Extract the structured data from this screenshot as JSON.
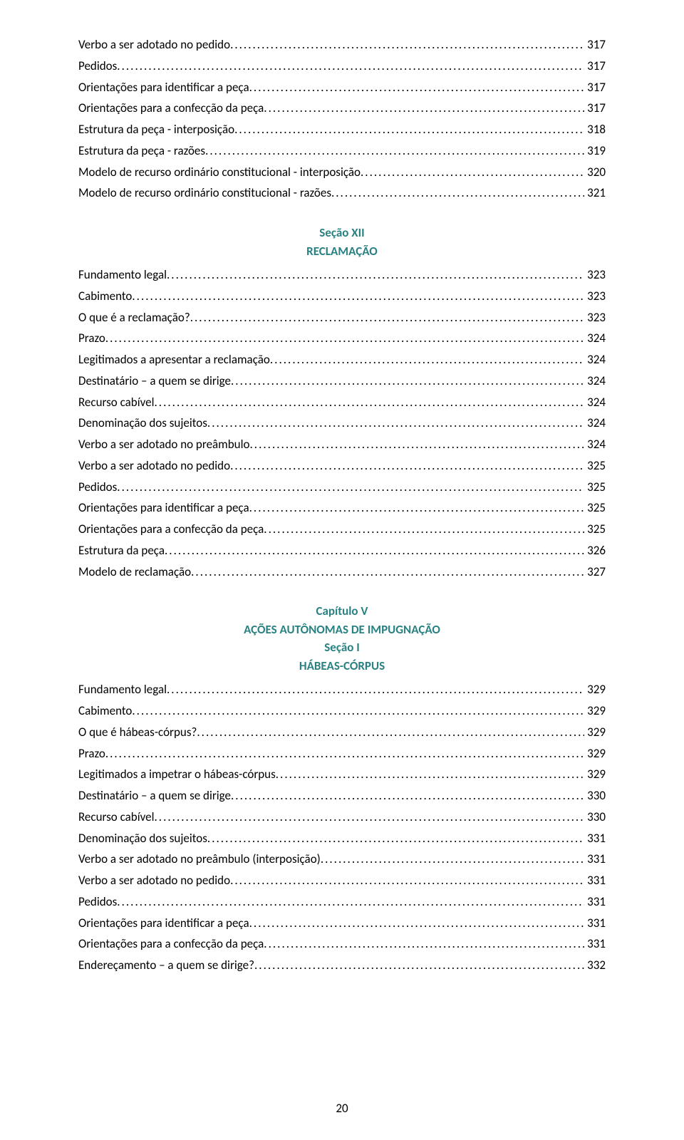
{
  "colors": {
    "text": "#000000",
    "accent": "#2a8182",
    "background": "#ffffff"
  },
  "typography": {
    "font_family": "Calibri",
    "body_fontsize_pt": 11,
    "heading_fontsize_pt": 11,
    "heading_weight": "bold",
    "line_height": 1.75
  },
  "page_number": "20",
  "blocks": [
    {
      "type": "toc",
      "items": [
        {
          "label": "Verbo a ser adotado no pedido",
          "page": "317"
        },
        {
          "label": "Pedidos",
          "page": "317"
        },
        {
          "label": "Orientações para identificar a peça",
          "page": "317"
        },
        {
          "label": "Orientações para a confecção da peça",
          "page": "317"
        },
        {
          "label": "Estrutura da peça  - interposição",
          "page": "318"
        },
        {
          "label": "Estrutura da peça  - razões",
          "page": "319"
        },
        {
          "label": "Modelo de recurso ordinário constitucional - interposição",
          "page": "320"
        },
        {
          "label": "Modelo de recurso ordinário constitucional - razões",
          "page": "321"
        }
      ]
    },
    {
      "type": "heading",
      "lines": [
        {
          "text": "Seção XII",
          "accent": true
        },
        {
          "text": "RECLAMAÇÃO",
          "accent": true
        }
      ]
    },
    {
      "type": "toc",
      "items": [
        {
          "label": "Fundamento legal",
          "page": "323"
        },
        {
          "label": "Cabimento",
          "page": "323"
        },
        {
          "label": "O que é a reclamação?",
          "page": "323"
        },
        {
          "label": "Prazo",
          "page": "324"
        },
        {
          "label": "Legitimados a apresentar a reclamação",
          "page": "324"
        },
        {
          "label": "Destinatário – a quem se dirige",
          "page": "324"
        },
        {
          "label": "Recurso cabível",
          "page": "324"
        },
        {
          "label": "Denominação dos sujeitos",
          "page": "324"
        },
        {
          "label": "Verbo a ser adotado no preâmbulo",
          "page": "324"
        },
        {
          "label": "Verbo a ser adotado no pedido",
          "page": "325"
        },
        {
          "label": "Pedidos",
          "page": "325"
        },
        {
          "label": "Orientações para identificar a peça",
          "page": "325"
        },
        {
          "label": "Orientações para a confecção da peça",
          "page": "325"
        },
        {
          "label": "Estrutura da peça ",
          "page": "326"
        },
        {
          "label": "Modelo de reclamação",
          "page": "327"
        }
      ]
    },
    {
      "type": "heading",
      "lines": [
        {
          "text": "Capítulo V",
          "accent": true
        },
        {
          "text": "AÇÕES AUTÔNOMAS DE IMPUGNAÇÃO",
          "accent": true
        },
        {
          "text": "Seção I",
          "accent": true
        },
        {
          "text": "HÁBEAS-CÓRPUS",
          "accent": true
        }
      ]
    },
    {
      "type": "toc",
      "items": [
        {
          "label": "Fundamento legal",
          "page": "329"
        },
        {
          "label": "Cabimento",
          "page": "329"
        },
        {
          "label": "O que é hábeas-córpus?",
          "page": "329"
        },
        {
          "label": "Prazo",
          "page": "329"
        },
        {
          "label": "Legitimados a impetrar o hábeas-córpus",
          "page": "329"
        },
        {
          "label": "Destinatário – a quem se dirige",
          "page": "330"
        },
        {
          "label": "Recurso cabível",
          "page": "330"
        },
        {
          "label": "Denominação dos sujeitos",
          "page": "331"
        },
        {
          "label": "Verbo a ser adotado no preâmbulo (interposição) ",
          "page": "331"
        },
        {
          "label": "Verbo a ser adotado no pedido",
          "page": "331"
        },
        {
          "label": "Pedidos",
          "page": "331"
        },
        {
          "label": "Orientações para identificar a peça",
          "page": "331"
        },
        {
          "label": "Orientações para a confecção da peça",
          "page": "331"
        },
        {
          "label": "Endereçamento – a quem se dirige?",
          "page": "332"
        }
      ]
    }
  ]
}
